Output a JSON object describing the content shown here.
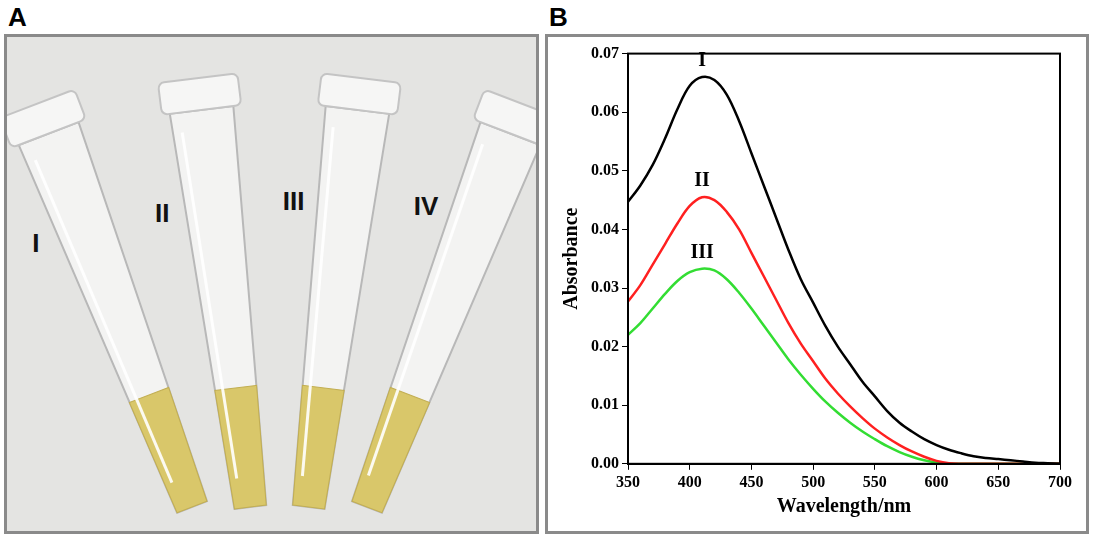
{
  "panel_a": {
    "letter": "A",
    "tube_labels": [
      "I",
      "II",
      "III",
      "IV"
    ]
  },
  "chart_data": {
    "type": "line",
    "letter": "B",
    "x_label": "Wavelength/nm",
    "y_label": "Absorbance",
    "x": [
      350,
      360,
      370,
      380,
      390,
      400,
      410,
      420,
      430,
      440,
      450,
      460,
      470,
      480,
      490,
      500,
      510,
      520,
      530,
      540,
      550,
      560,
      570,
      580,
      590,
      600,
      610,
      620,
      630,
      640,
      650,
      660,
      670,
      680,
      690,
      700
    ],
    "series": [
      {
        "name": "I",
        "color": "#000000",
        "values": [
          0.0447,
          0.0475,
          0.051,
          0.0555,
          0.0605,
          0.0645,
          0.066,
          0.0655,
          0.063,
          0.0585,
          0.053,
          0.0475,
          0.042,
          0.0365,
          0.0315,
          0.0275,
          0.0235,
          0.02,
          0.017,
          0.014,
          0.0115,
          0.009,
          0.007,
          0.0055,
          0.0042,
          0.0032,
          0.0024,
          0.0018,
          0.0013,
          0.001,
          0.0008,
          0.0006,
          0.0004,
          0.0002,
          0.0001,
          0
        ]
      },
      {
        "name": "II",
        "color": "#ff2020",
        "values": [
          0.0277,
          0.0305,
          0.034,
          0.0375,
          0.041,
          0.044,
          0.0455,
          0.045,
          0.043,
          0.04,
          0.036,
          0.032,
          0.028,
          0.024,
          0.0205,
          0.0175,
          0.0145,
          0.012,
          0.0098,
          0.0078,
          0.006,
          0.0045,
          0.0032,
          0.0021,
          0.0012,
          0.0005,
          0.0001,
          0,
          0,
          0,
          0,
          0,
          0,
          0,
          0,
          0
        ]
      },
      {
        "name": "III",
        "color": "#33dd33",
        "values": [
          0.022,
          0.024,
          0.0265,
          0.029,
          0.0312,
          0.0327,
          0.0333,
          0.033,
          0.0315,
          0.0292,
          0.0265,
          0.0236,
          0.0207,
          0.0178,
          0.0152,
          0.0128,
          0.0106,
          0.0087,
          0.007,
          0.0055,
          0.0042,
          0.003,
          0.002,
          0.0012,
          0.0006,
          0.0002,
          0,
          0,
          0,
          0,
          0,
          0,
          0,
          0,
          0,
          0
        ]
      }
    ],
    "xlim": [
      350,
      700
    ],
    "xticks": [
      350,
      400,
      450,
      500,
      550,
      600,
      650,
      700
    ],
    "ylim": [
      0,
      0.07
    ],
    "yticks": [
      {
        "value": 0,
        "label": "0.00"
      },
      {
        "value": 0.01,
        "label": "0.01"
      },
      {
        "value": 0.02,
        "label": "0.02"
      },
      {
        "value": 0.03,
        "label": "0.03"
      },
      {
        "value": 0.04,
        "label": "0.04"
      },
      {
        "value": 0.05,
        "label": "0.05"
      },
      {
        "value": 0.06,
        "label": "0.06"
      },
      {
        "value": 0.07,
        "label": "0.07"
      }
    ],
    "grid": false
  }
}
